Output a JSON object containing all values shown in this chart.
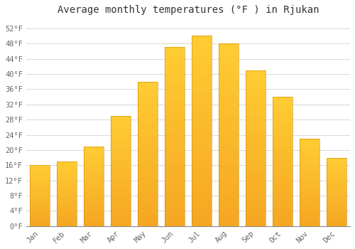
{
  "title": "Average monthly temperatures (°F ) in Rjukan",
  "months": [
    "Jan",
    "Feb",
    "Mar",
    "Apr",
    "May",
    "Jun",
    "Jul",
    "Aug",
    "Sep",
    "Oct",
    "Nov",
    "Dec"
  ],
  "values": [
    16,
    17,
    21,
    29,
    38,
    47,
    50,
    48,
    41,
    34,
    23,
    18
  ],
  "bar_color_bottom": "#F5A623",
  "bar_color_top": "#FFCC33",
  "background_color": "#FFFFFF",
  "grid_color": "#D8D8D8",
  "yticks": [
    0,
    4,
    8,
    12,
    16,
    20,
    24,
    28,
    32,
    36,
    40,
    44,
    48,
    52
  ],
  "ytick_labels": [
    "0°F",
    "4°F",
    "8°F",
    "12°F",
    "16°F",
    "20°F",
    "24°F",
    "28°F",
    "32°F",
    "36°F",
    "40°F",
    "44°F",
    "48°F",
    "52°F"
  ],
  "ylim": [
    0,
    54
  ],
  "title_fontsize": 10,
  "tick_fontsize": 7.5,
  "bar_width": 0.75,
  "figsize": [
    5.0,
    3.5
  ],
  "dpi": 100
}
